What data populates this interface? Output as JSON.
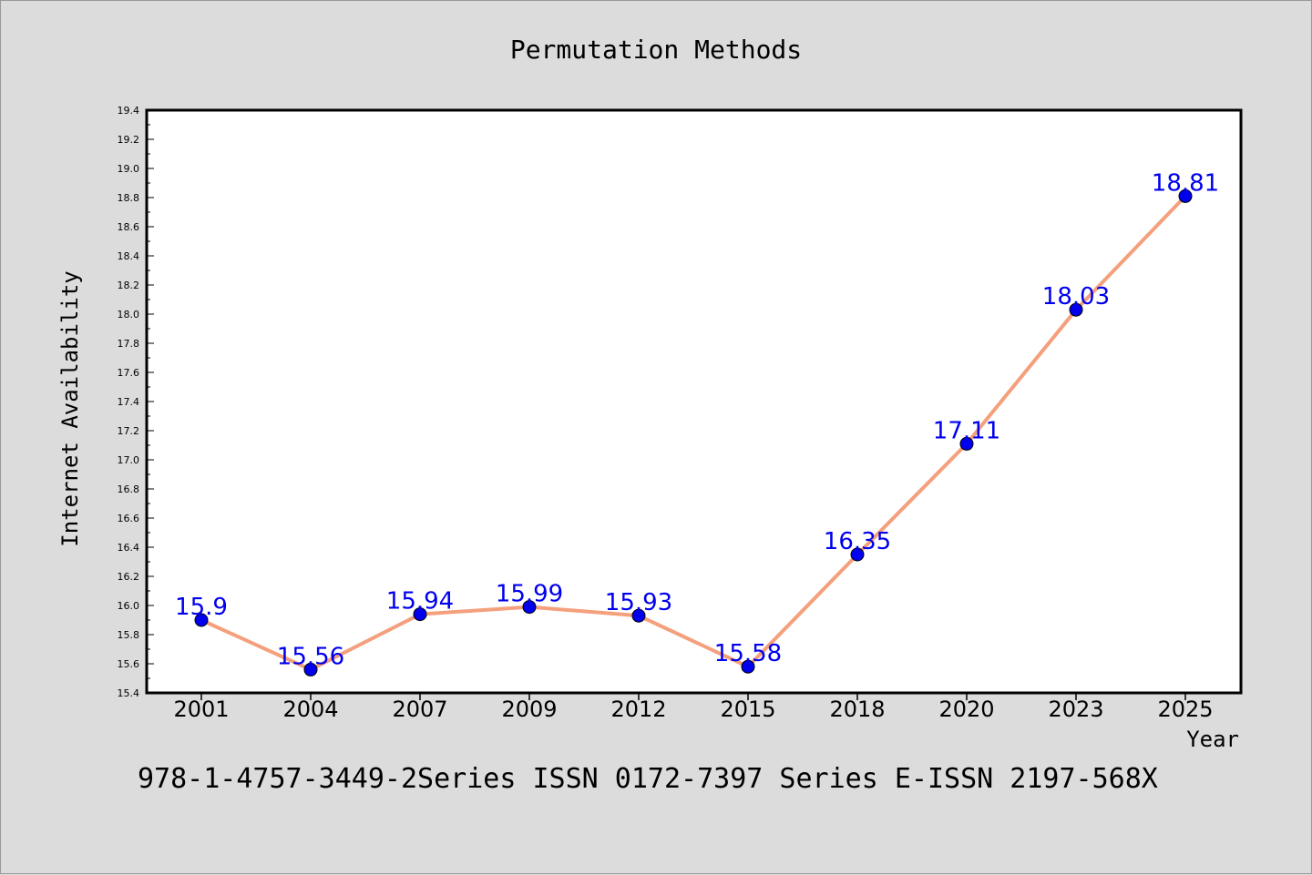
{
  "chart_data": {
    "type": "line",
    "title": "Permutation Methods",
    "xlabel": "Year",
    "ylabel": "Internet Availability",
    "categories": [
      "2001",
      "2004",
      "2007",
      "2009",
      "2012",
      "2015",
      "2018",
      "2020",
      "2023",
      "2025"
    ],
    "series": [
      {
        "values": [
          15.9,
          15.56,
          15.94,
          15.99,
          15.93,
          15.58,
          16.35,
          17.11,
          18.03,
          18.81
        ],
        "data_labels": [
          "15.9",
          "15.56",
          "15.94",
          "15.99",
          "15.93",
          "15.58",
          "16.35",
          "17.11",
          "18.03",
          "18.81"
        ]
      }
    ],
    "ylim": [
      15.4,
      19.4
    ],
    "yticks": [
      "15.4",
      "15.6",
      "15.8",
      "16.0",
      "16.2",
      "16.4",
      "16.6",
      "16.8",
      "17.0",
      "17.2",
      "17.4",
      "17.6",
      "17.8",
      "18.0",
      "18.2",
      "18.4",
      "18.6",
      "18.8",
      "19.0",
      "19.2",
      "19.4"
    ],
    "grid": false,
    "legend": "none",
    "colors": {
      "line": "#f4a07c",
      "marker": "#0000ee",
      "label": "#0000ee",
      "plot_background": "#ffffff",
      "page_background": "#dcdcdc"
    }
  },
  "footer": {
    "text": "978-1-4757-3449-2Series ISSN 0172-7397 Series E-ISSN 2197-568X"
  }
}
